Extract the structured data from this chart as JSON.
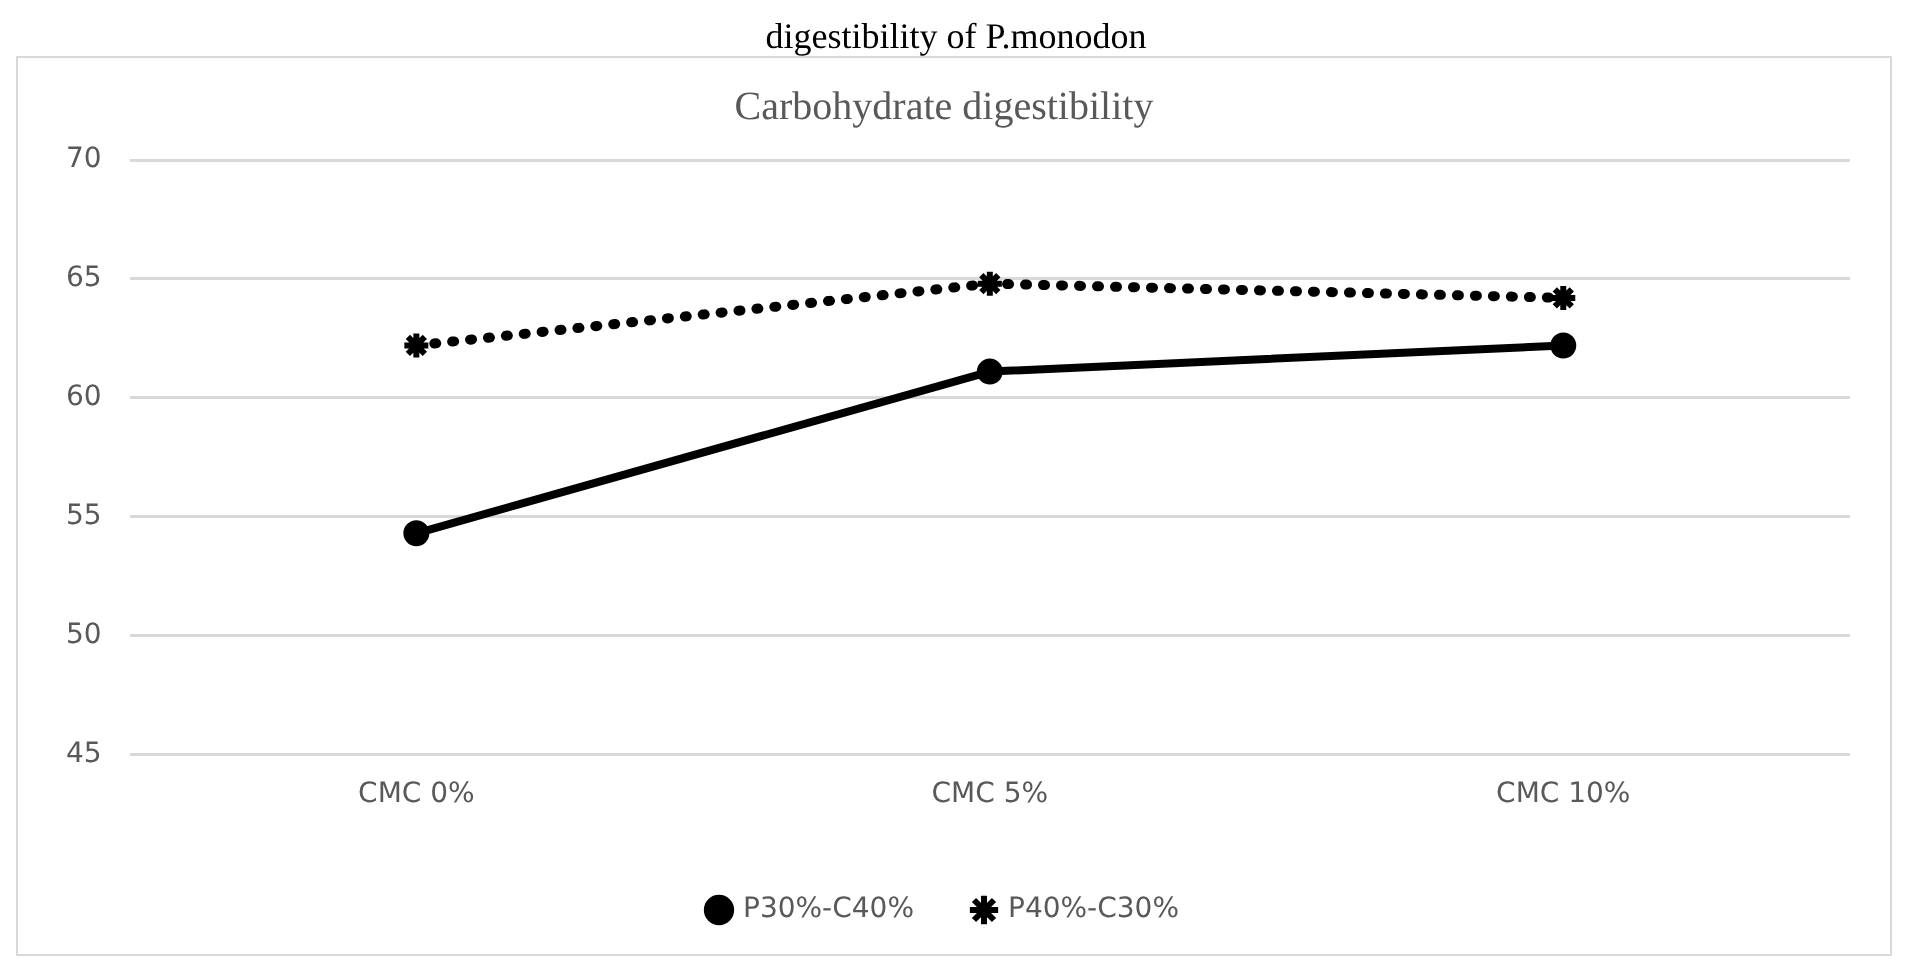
{
  "chart_data": {
    "type": "line",
    "title": "Carbohydrate digestibility",
    "annotations": [
      "digestibility of P.monodon"
    ],
    "categories": [
      "CMC 0%",
      "CMC 5%",
      "CMC 10%"
    ],
    "series": [
      {
        "name": "P30%-C40%",
        "color": "#000000",
        "values": [
          54.3,
          61.1,
          62.2
        ],
        "marker": "circle",
        "line_style": "solid"
      },
      {
        "name": "P40%-C30%",
        "color": "#000000",
        "values": [
          62.2,
          64.8,
          64.2
        ],
        "marker": "cross",
        "line_style": "dotted"
      }
    ],
    "ylim": [
      45,
      70
    ],
    "yticks": [
      45,
      50,
      55,
      60,
      65,
      70
    ],
    "grid": "y",
    "legend": "bottom"
  }
}
